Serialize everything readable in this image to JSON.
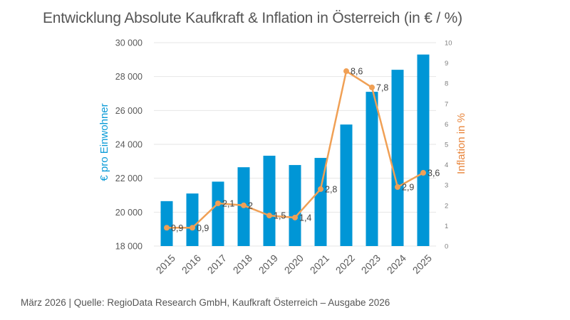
{
  "title": "Entwicklung Absolute Kaufkraft & Inflation in Österreich (in € / %)",
  "footer": "März 2026  |  Quelle: RegioData Research GmbH, Kaufkraft Österreich – Ausgabe 2026",
  "colors": {
    "bars": "#0096d6",
    "line": "#f4a460",
    "line_stroke": "#f0a055",
    "grid": "#e6e6e6",
    "left_axis_label": "#0b9bd7",
    "right_axis_label": "#e8843a"
  },
  "chart_data": {
    "type": "bar+line",
    "title": "Entwicklung Absolute Kaufkraft & Inflation in Österreich (in € / %)",
    "categories": [
      "2015",
      "2016",
      "2017",
      "2018",
      "2019",
      "2020",
      "2021",
      "2022",
      "2023",
      "2024",
      "2025"
    ],
    "series": [
      {
        "name": "Kaufkraft (€ pro Einwohner)",
        "type": "bar",
        "axis": "left",
        "values": [
          20650,
          21100,
          21800,
          22650,
          23330,
          22780,
          23200,
          25170,
          27100,
          28400,
          29300
        ]
      },
      {
        "name": "Inflation in %",
        "type": "line",
        "axis": "right",
        "values": [
          0.9,
          0.9,
          2.1,
          2.0,
          1.5,
          1.4,
          2.8,
          8.6,
          7.8,
          2.9,
          3.6
        ],
        "labels": [
          "0,9",
          "0,9",
          "2,1",
          "2",
          "1,5",
          "1,4",
          "2,8",
          "8,6",
          "7,8",
          "2,9",
          "3,6"
        ]
      }
    ],
    "ylabel": "€ pro Einwohner",
    "y2label": "Inflation in %",
    "ylim": [
      18000,
      30000
    ],
    "y_ticks": [
      18000,
      20000,
      22000,
      24000,
      26000,
      28000,
      30000
    ],
    "y_tick_labels": [
      "18 000",
      "20 000",
      "22 000",
      "24 000",
      "26 000",
      "28 000",
      "30 000"
    ],
    "y2lim": [
      0,
      10
    ],
    "y2_ticks": [
      0,
      1,
      2,
      3,
      4,
      5,
      6,
      7,
      8,
      9,
      10
    ],
    "y2_tick_labels": [
      "0",
      "1",
      "2",
      "3",
      "4",
      "5",
      "6",
      "7",
      "8",
      "9",
      "10"
    ],
    "grid": true,
    "legend": "none",
    "xlabel": ""
  }
}
